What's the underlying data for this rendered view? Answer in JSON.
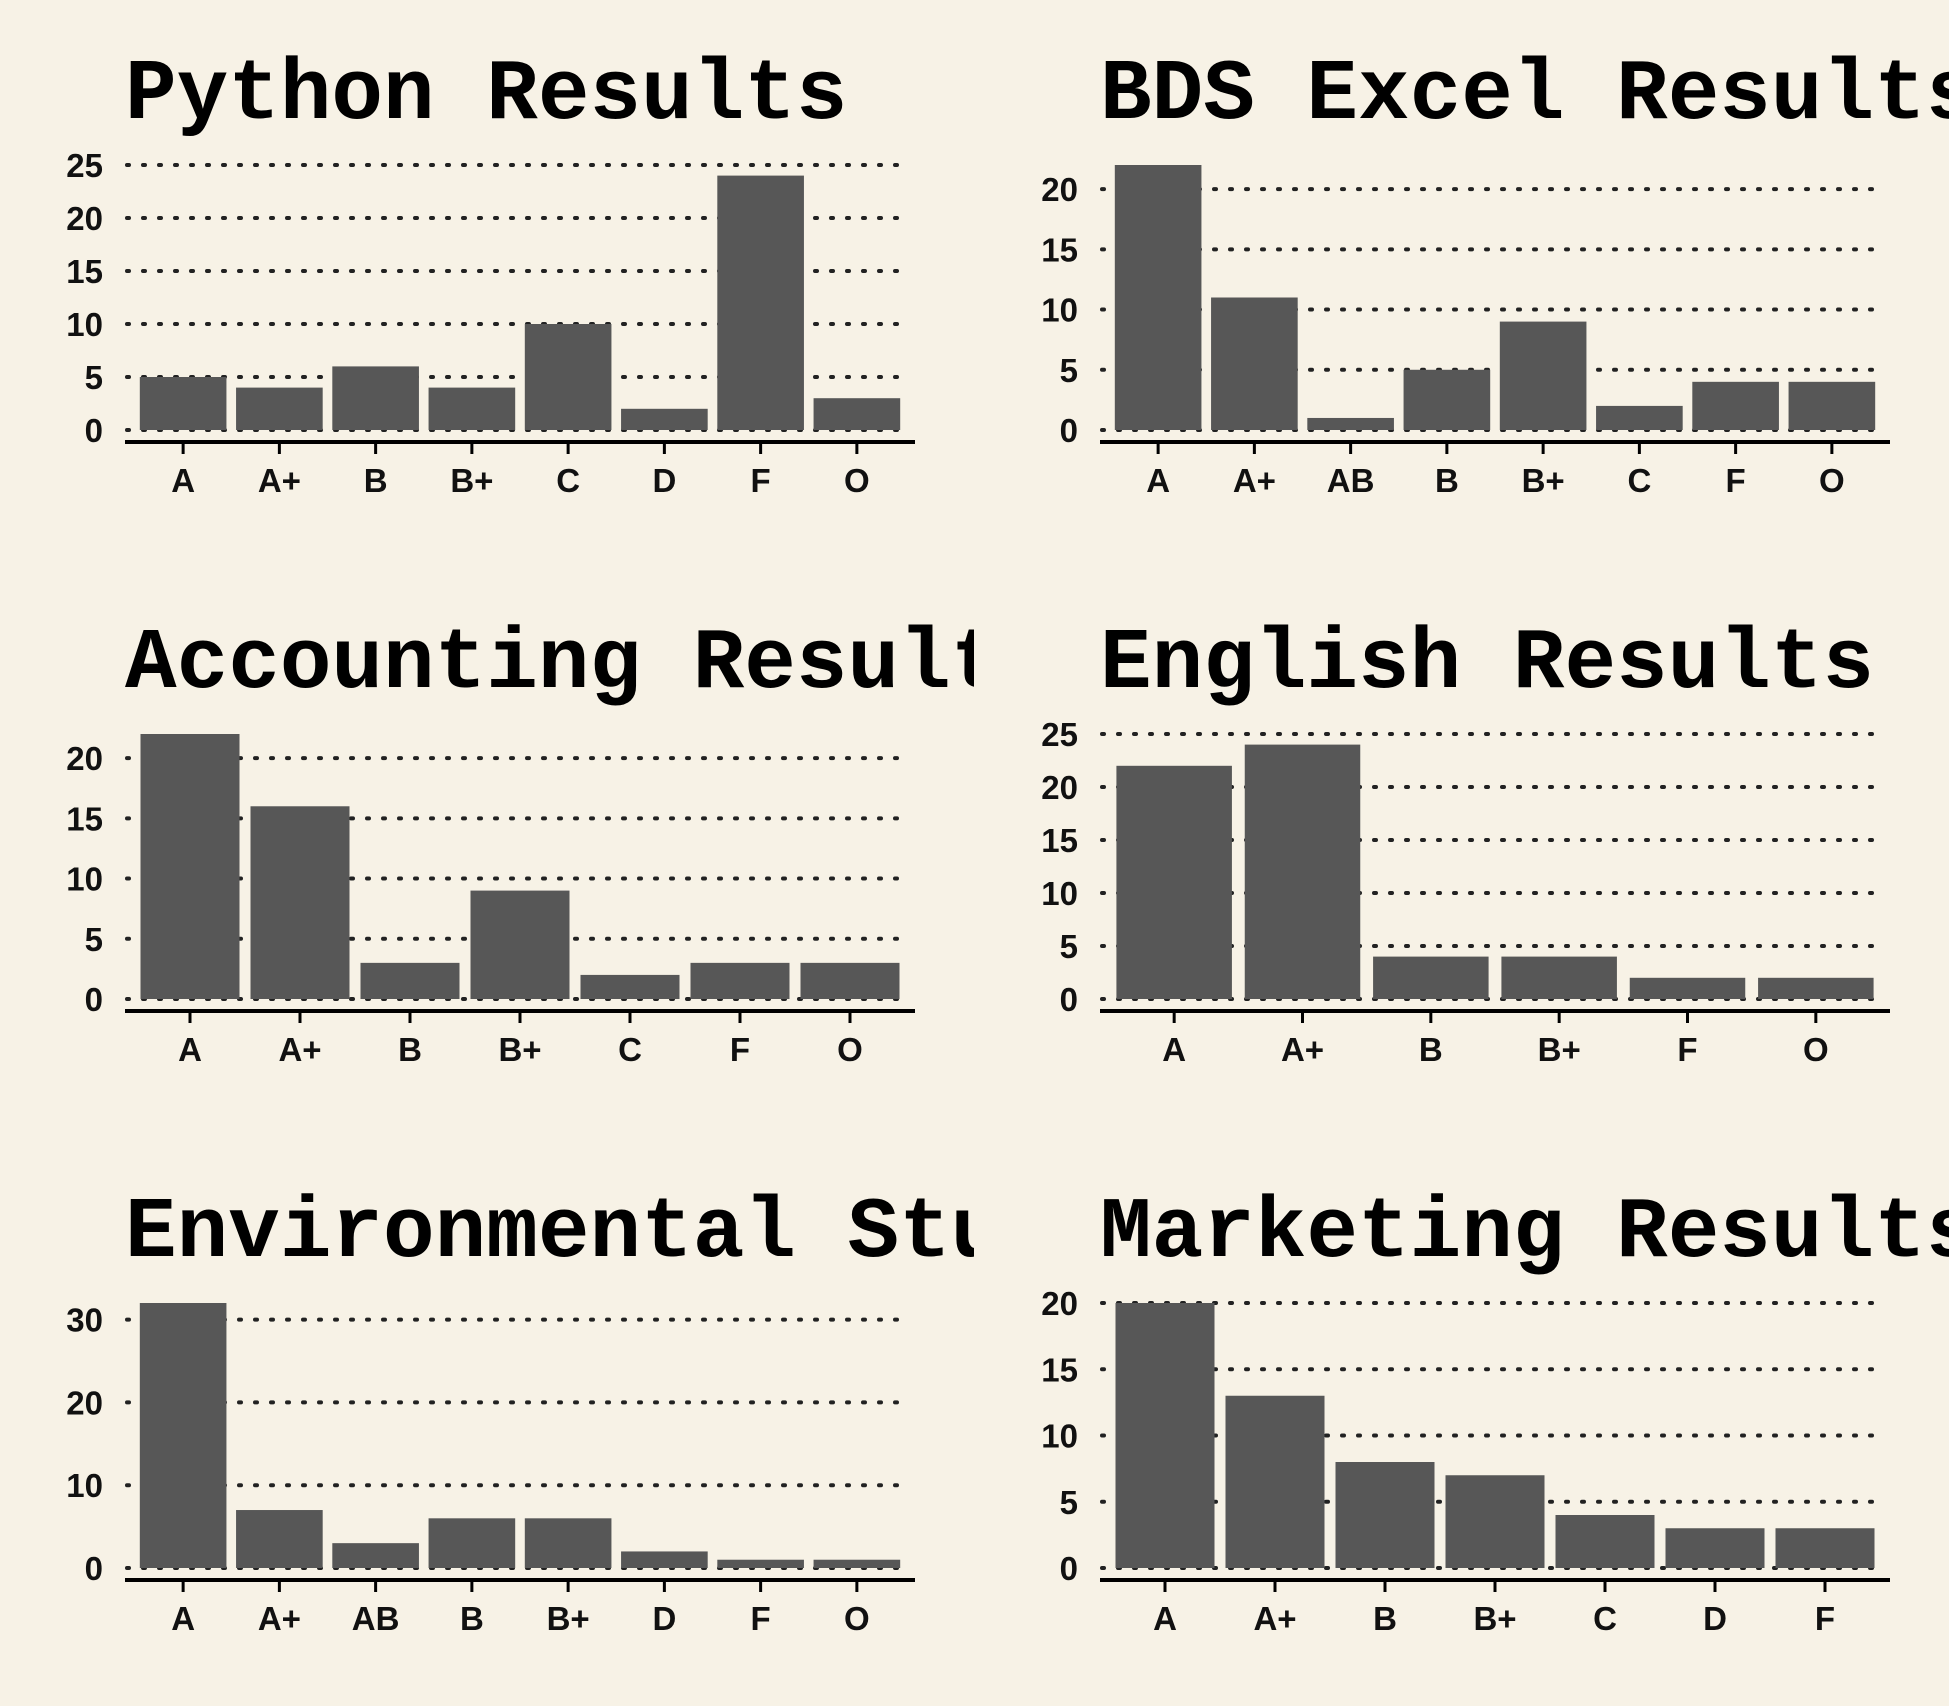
{
  "chart_data": [
    {
      "type": "bar",
      "title": "Python Results",
      "categories": [
        "A",
        "A+",
        "B",
        "B+",
        "C",
        "D",
        "F",
        "O"
      ],
      "values": [
        5,
        4,
        6,
        4,
        10,
        2,
        24,
        3
      ],
      "ylim": [
        0,
        25
      ],
      "yticks": [
        0,
        5,
        10,
        15,
        20,
        25
      ],
      "grid": true,
      "bar_color": "#575757"
    },
    {
      "type": "bar",
      "title": "BDS Excel Results",
      "categories": [
        "A",
        "A+",
        "AB",
        "B",
        "B+",
        "C",
        "F",
        "O"
      ],
      "values": [
        22,
        11,
        1,
        5,
        9,
        2,
        4,
        4
      ],
      "ylim": [
        0,
        22
      ],
      "yticks": [
        0,
        5,
        10,
        15,
        20
      ],
      "grid": true,
      "bar_color": "#575757"
    },
    {
      "type": "bar",
      "title": "Accounting Results",
      "categories": [
        "A",
        "A+",
        "B",
        "B+",
        "C",
        "F",
        "O"
      ],
      "values": [
        22,
        16,
        3,
        9,
        2,
        3,
        3
      ],
      "ylim": [
        0,
        22
      ],
      "yticks": [
        0,
        5,
        10,
        15,
        20
      ],
      "grid": true,
      "bar_color": "#575757"
    },
    {
      "type": "bar",
      "title": "English Results",
      "categories": [
        "A",
        "A+",
        "B",
        "B+",
        "F",
        "O"
      ],
      "values": [
        22,
        24,
        4,
        4,
        2,
        2
      ],
      "ylim": [
        0,
        25
      ],
      "yticks": [
        0,
        5,
        10,
        15,
        20,
        25
      ],
      "grid": true,
      "bar_color": "#575757"
    },
    {
      "type": "bar",
      "title": "Environmental Studies Results",
      "categories": [
        "A",
        "A+",
        "AB",
        "B",
        "B+",
        "D",
        "F",
        "O"
      ],
      "values": [
        32,
        7,
        3,
        6,
        6,
        2,
        1,
        1
      ],
      "ylim": [
        0,
        32
      ],
      "yticks": [
        0,
        10,
        20,
        30
      ],
      "grid": true,
      "bar_color": "#575757"
    },
    {
      "type": "bar",
      "title": "Marketing Results",
      "categories": [
        "A",
        "A+",
        "B",
        "B+",
        "C",
        "D",
        "F"
      ],
      "values": [
        20,
        13,
        8,
        7,
        4,
        3,
        3
      ],
      "ylim": [
        0,
        20
      ],
      "yticks": [
        0,
        5,
        10,
        15,
        20
      ],
      "grid": true,
      "bar_color": "#575757"
    }
  ]
}
